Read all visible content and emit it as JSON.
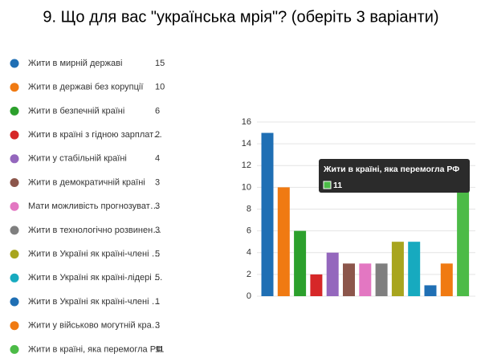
{
  "chart_data": {
    "type": "bar",
    "title": "9. Що для вас \"українська мрія\"? (оберіть 3 варіанти)",
    "categories": [
      "Жити в мирній державі",
      "Жити в державі без корупції",
      "Жити в безпечній країні",
      "Жити в країні з гідною зарплат…",
      "Жити у стабільній країні",
      "Жити в демократичній країні",
      "Мати можливість прогнозуват…",
      "Жити в технологічно розвинен…",
      "Жити в Україні як країні-члені …",
      "Жити в Україні як країні-лідері …",
      "Жити в Україні як країні-члені …",
      "Жити у військово могутній кра…",
      "Жити в країні, яка перемогла РФ"
    ],
    "values": [
      15,
      10,
      6,
      2,
      4,
      3,
      3,
      3,
      5,
      5,
      1,
      3,
      11
    ],
    "colors": [
      "#1f6fb4",
      "#f07a12",
      "#2ca02c",
      "#d62728",
      "#9467bd",
      "#8c564b",
      "#e377c2",
      "#7f7f7f",
      "#a8a51e",
      "#17aabf",
      "#1f6fb4",
      "#f07a12",
      "#4cbb47"
    ],
    "tooltip_index": 12,
    "ylim": [
      0,
      16
    ],
    "yticks": [
      0,
      2,
      4,
      6,
      8,
      10,
      12,
      14,
      16
    ],
    "grid": true
  }
}
